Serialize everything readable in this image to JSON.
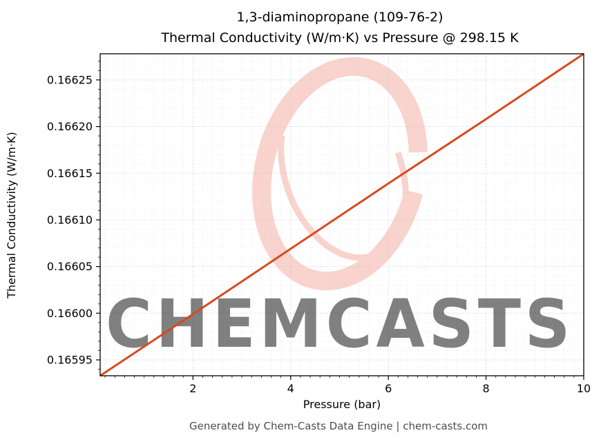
{
  "header": {
    "title_line1": "1,3-diaminopropane (109-76-2)",
    "title_line2": "Thermal Conductivity (W/m·K) vs Pressure @ 298.15 K"
  },
  "footer": {
    "text": "Generated by Chem-Casts Data Engine | chem-casts.com"
  },
  "watermark": {
    "text": "CHEMCASTS",
    "color": "#f2a79b"
  },
  "chart_data": {
    "type": "line",
    "title": "1,3-diaminopropane (109-76-2) Thermal Conductivity (W/m·K) vs Pressure @ 298.15 K",
    "xlabel": "Pressure (bar)",
    "ylabel": "Thermal Conductivity (W/m·K)",
    "xlim": [
      0.1,
      10
    ],
    "ylim": [
      0.165933,
      0.166278
    ],
    "x_ticks": [
      2,
      4,
      6,
      8,
      10
    ],
    "x_tick_labels": [
      "2",
      "4",
      "6",
      "8",
      "10"
    ],
    "y_ticks": [
      0.16595,
      0.166,
      0.16605,
      0.1661,
      0.16615,
      0.1662,
      0.16625
    ],
    "y_tick_labels": [
      "0.16595",
      "0.16600",
      "0.16605",
      "0.16610",
      "0.16615",
      "0.16620",
      "0.16625"
    ],
    "x_minor_step": 0.2,
    "y_minor_step": 1e-05,
    "grid": true,
    "legend": "none",
    "line_color": "#d9491c",
    "series": [
      {
        "name": "thermal_conductivity_vs_pressure",
        "x": [
          0.1,
          2,
          4,
          6,
          8,
          10
        ],
        "y": [
          0.165933,
          0.165999,
          0.166069,
          0.166139,
          0.166208,
          0.166278
        ]
      }
    ]
  }
}
